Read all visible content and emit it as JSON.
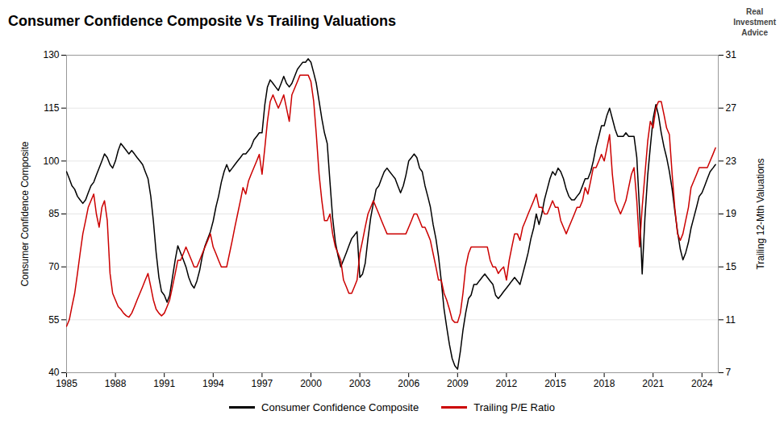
{
  "chart_data": {
    "type": "line",
    "title": "Consumer Confidence Composite Vs Trailing Valuations",
    "ylabel": "Consumer Confidence Composite",
    "y2label": "Trailing 12-Mth Valuations",
    "annotations": [
      "Real\nInvestment\nAdvice"
    ],
    "grid": true,
    "legend": "bottom",
    "xlim": [
      1985.0,
      2025.0
    ],
    "xticks": [
      1985,
      1988,
      1991,
      1994,
      1997,
      2000,
      2003,
      2006,
      2009,
      2012,
      2015,
      2018,
      2021,
      2024
    ],
    "ylim": [
      40,
      130
    ],
    "yticks": [
      40,
      55,
      70,
      85,
      100,
      115,
      130
    ],
    "y2lim": [
      7,
      31
    ],
    "y2ticks": [
      7,
      11,
      15,
      19,
      23,
      27,
      31
    ],
    "x": [
      1985.0,
      1985.17,
      1985.33,
      1985.5,
      1985.67,
      1985.83,
      1986.0,
      1986.17,
      1986.33,
      1986.5,
      1986.67,
      1986.83,
      1987.0,
      1987.17,
      1987.33,
      1987.5,
      1987.67,
      1987.83,
      1988.0,
      1988.17,
      1988.33,
      1988.5,
      1988.67,
      1988.83,
      1989.0,
      1989.17,
      1989.33,
      1989.5,
      1989.67,
      1989.83,
      1990.0,
      1990.17,
      1990.33,
      1990.5,
      1990.67,
      1990.83,
      1991.0,
      1991.17,
      1991.33,
      1991.5,
      1991.67,
      1991.83,
      1992.0,
      1992.17,
      1992.33,
      1992.5,
      1992.67,
      1992.83,
      1993.0,
      1993.17,
      1993.33,
      1993.5,
      1993.67,
      1993.83,
      1994.0,
      1994.17,
      1994.33,
      1994.5,
      1994.67,
      1994.83,
      1995.0,
      1995.17,
      1995.33,
      1995.5,
      1995.67,
      1995.83,
      1996.0,
      1996.17,
      1996.33,
      1996.5,
      1996.67,
      1996.83,
      1997.0,
      1997.17,
      1997.33,
      1997.5,
      1997.67,
      1997.83,
      1998.0,
      1998.17,
      1998.33,
      1998.5,
      1998.67,
      1998.83,
      1999.0,
      1999.17,
      1999.33,
      1999.5,
      1999.67,
      1999.83,
      2000.0,
      2000.17,
      2000.33,
      2000.5,
      2000.67,
      2000.83,
      2001.0,
      2001.17,
      2001.33,
      2001.5,
      2001.67,
      2001.83,
      2002.0,
      2002.17,
      2002.33,
      2002.5,
      2002.67,
      2002.83,
      2003.0,
      2003.17,
      2003.33,
      2003.5,
      2003.67,
      2003.83,
      2004.0,
      2004.17,
      2004.33,
      2004.5,
      2004.67,
      2004.83,
      2005.0,
      2005.17,
      2005.33,
      2005.5,
      2005.67,
      2005.83,
      2006.0,
      2006.17,
      2006.33,
      2006.5,
      2006.67,
      2006.83,
      2007.0,
      2007.17,
      2007.33,
      2007.5,
      2007.67,
      2007.83,
      2008.0,
      2008.17,
      2008.33,
      2008.5,
      2008.67,
      2008.83,
      2009.0,
      2009.17,
      2009.33,
      2009.5,
      2009.67,
      2009.83,
      2010.0,
      2010.17,
      2010.33,
      2010.5,
      2010.67,
      2010.83,
      2011.0,
      2011.17,
      2011.33,
      2011.5,
      2011.67,
      2011.83,
      2012.0,
      2012.17,
      2012.33,
      2012.5,
      2012.67,
      2012.83,
      2013.0,
      2013.17,
      2013.33,
      2013.5,
      2013.67,
      2013.83,
      2014.0,
      2014.17,
      2014.33,
      2014.5,
      2014.67,
      2014.83,
      2015.0,
      2015.17,
      2015.33,
      2015.5,
      2015.67,
      2015.83,
      2016.0,
      2016.17,
      2016.33,
      2016.5,
      2016.67,
      2016.83,
      2017.0,
      2017.17,
      2017.33,
      2017.5,
      2017.67,
      2017.83,
      2018.0,
      2018.17,
      2018.33,
      2018.5,
      2018.67,
      2018.83,
      2019.0,
      2019.17,
      2019.33,
      2019.5,
      2019.67,
      2019.83,
      2020.0,
      2020.17,
      2020.33,
      2020.5,
      2020.67,
      2020.83,
      2021.0,
      2021.17,
      2021.33,
      2021.5,
      2021.67,
      2021.83,
      2022.0,
      2022.17,
      2022.33,
      2022.5,
      2022.67,
      2022.83,
      2023.0,
      2023.17,
      2023.33,
      2023.5,
      2023.67,
      2023.83,
      2024.0,
      2024.17,
      2024.33,
      2024.5,
      2024.67,
      2024.83
    ],
    "series": [
      {
        "name": "Consumer Confidence Composite",
        "color": "#000000",
        "values": [
          97,
          95,
          93,
          92,
          90,
          89,
          88,
          89,
          91,
          93,
          94,
          96,
          98,
          100,
          102,
          101,
          99,
          98,
          100,
          103,
          105,
          104,
          103,
          102,
          103,
          102,
          101,
          100,
          99,
          97,
          95,
          90,
          83,
          74,
          67,
          63,
          62,
          60,
          62,
          67,
          72,
          76,
          74,
          72,
          70,
          67,
          65,
          64,
          66,
          69,
          73,
          76,
          78,
          80,
          83,
          87,
          90,
          94,
          97,
          99,
          97,
          98,
          99,
          100,
          101,
          102,
          102,
          103,
          104,
          106,
          107,
          108,
          108,
          116,
          121,
          123,
          122,
          121,
          120,
          122,
          124,
          122,
          121,
          122,
          124,
          126,
          127,
          128,
          128,
          129,
          128,
          125,
          122,
          117,
          112,
          108,
          105,
          94,
          84,
          77,
          73,
          70,
          72,
          74,
          76,
          78,
          79,
          80,
          67,
          68,
          71,
          78,
          84,
          88,
          92,
          93,
          95,
          97,
          98,
          97,
          96,
          95,
          93,
          91,
          93,
          96,
          100,
          101,
          102,
          101,
          98,
          97,
          93,
          90,
          87,
          82,
          78,
          73,
          66,
          58,
          53,
          48,
          44,
          42,
          41,
          46,
          52,
          57,
          61,
          62,
          65,
          65,
          66,
          67,
          68,
          67,
          66,
          65,
          62,
          61,
          62,
          63,
          64,
          65,
          66,
          67,
          66,
          65,
          68,
          71,
          74,
          78,
          81,
          85,
          82,
          85,
          89,
          92,
          95,
          97,
          96,
          98,
          97,
          95,
          92,
          90,
          89,
          89,
          90,
          91,
          93,
          95,
          95,
          97,
          100,
          104,
          107,
          110,
          110,
          113,
          115,
          112,
          109,
          107,
          107,
          107,
          108,
          107,
          107,
          107,
          101,
          86,
          68,
          84,
          96,
          104,
          112,
          116,
          113,
          108,
          104,
          101,
          97,
          92,
          86,
          80,
          75,
          72,
          74,
          77,
          81,
          84,
          87,
          90,
          91,
          93,
          95,
          97,
          98,
          99
        ]
      },
      {
        "name": "Trailing P/E Ratio",
        "color": "#cc0000",
        "axis": "y2",
        "values": [
          10.5,
          11.0,
          12.0,
          13.0,
          14.5,
          16.0,
          17.5,
          18.5,
          19.5,
          20.0,
          20.5,
          19.0,
          18.0,
          19.5,
          20.0,
          18.5,
          14.5,
          13.0,
          12.5,
          12.0,
          11.8,
          11.5,
          11.3,
          11.2,
          11.5,
          12.0,
          12.5,
          13.0,
          13.5,
          14.0,
          14.5,
          13.5,
          12.5,
          11.8,
          11.5,
          11.3,
          11.5,
          12.0,
          12.5,
          13.5,
          14.5,
          15.5,
          15.5,
          16.0,
          16.5,
          16.0,
          15.5,
          15.0,
          15.0,
          15.5,
          16.0,
          16.5,
          17.0,
          17.5,
          16.5,
          16.0,
          15.5,
          15.0,
          15.0,
          15.0,
          16.0,
          17.0,
          18.0,
          19.0,
          20.0,
          21.0,
          20.5,
          21.5,
          22.0,
          22.5,
          23.0,
          23.5,
          22.0,
          24.0,
          26.0,
          27.5,
          28.0,
          27.5,
          27.0,
          27.5,
          28.0,
          27.0,
          26.0,
          28.0,
          28.5,
          29.0,
          29.5,
          29.5,
          29.5,
          29.5,
          29.0,
          27.5,
          25.0,
          22.0,
          20.0,
          18.5,
          18.5,
          19.0,
          17.5,
          16.5,
          16.0,
          15.5,
          14.0,
          13.5,
          13.0,
          13.0,
          13.5,
          14.0,
          16.0,
          17.0,
          18.0,
          19.0,
          19.5,
          20.0,
          19.5,
          19.0,
          18.5,
          18.0,
          17.5,
          17.5,
          17.5,
          17.5,
          17.5,
          17.5,
          17.5,
          17.5,
          18.0,
          18.5,
          19.0,
          19.0,
          18.5,
          18.0,
          18.0,
          17.5,
          17.0,
          16.0,
          15.0,
          14.0,
          14.0,
          13.0,
          12.5,
          11.8,
          11.0,
          10.8,
          10.8,
          11.5,
          13.0,
          15.0,
          16.0,
          16.5,
          16.5,
          16.5,
          16.5,
          16.5,
          16.5,
          16.5,
          15.5,
          15.0,
          15.0,
          14.5,
          14.8,
          15.0,
          14.0,
          15.5,
          16.5,
          17.5,
          17.5,
          17.0,
          18.0,
          18.5,
          19.0,
          19.5,
          20.0,
          20.5,
          19.5,
          19.5,
          19.0,
          19.0,
          19.5,
          20.0,
          19.5,
          19.5,
          18.5,
          18.0,
          17.5,
          18.0,
          18.5,
          19.0,
          19.5,
          19.5,
          20.0,
          21.0,
          20.5,
          21.5,
          22.5,
          22.5,
          23.0,
          23.5,
          23.0,
          24.0,
          25.0,
          22.0,
          20.0,
          19.5,
          19.0,
          19.5,
          20.0,
          21.0,
          22.0,
          22.5,
          20.0,
          16.5,
          19.5,
          22.0,
          24.5,
          26.0,
          25.5,
          27.0,
          27.5,
          27.5,
          26.5,
          25.5,
          25.0,
          22.0,
          19.5,
          17.5,
          17.0,
          17.5,
          18.5,
          19.5,
          21.0,
          21.5,
          22.0,
          22.5,
          22.5,
          22.5,
          22.5,
          23.0,
          23.5,
          24.0
        ]
      }
    ]
  }
}
